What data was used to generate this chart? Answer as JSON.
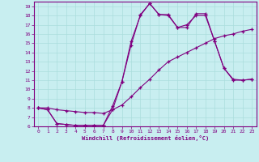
{
  "bg_color": "#c8eef0",
  "line_color": "#800080",
  "grid_color": "#aadddd",
  "xlabel": "Windchill (Refroidissement éolien,°C)",
  "xlim": [
    -0.5,
    23.5
  ],
  "ylim": [
    6,
    19.5
  ],
  "yticks": [
    6,
    7,
    8,
    9,
    10,
    11,
    12,
    13,
    14,
    15,
    16,
    17,
    18,
    19
  ],
  "xticks": [
    0,
    1,
    2,
    3,
    4,
    5,
    6,
    7,
    8,
    9,
    10,
    11,
    12,
    13,
    14,
    15,
    16,
    17,
    18,
    19,
    20,
    21,
    22,
    23
  ],
  "line1_x": [
    0,
    1,
    2,
    3,
    4,
    5,
    6,
    7,
    8,
    9,
    10,
    11,
    12,
    13,
    14,
    15,
    16,
    17,
    18,
    19,
    20,
    21,
    22,
    23
  ],
  "line1_y": [
    8.0,
    7.8,
    6.3,
    6.2,
    6.1,
    6.1,
    6.1,
    6.1,
    7.8,
    10.8,
    15.2,
    18.0,
    19.3,
    18.1,
    18.1,
    16.7,
    17.0,
    18.0,
    18.0,
    15.2,
    12.3,
    11.1,
    11.0,
    11.1
  ],
  "line2_x": [
    0,
    1,
    2,
    3,
    4,
    5,
    6,
    7,
    8,
    9,
    10,
    11,
    12,
    13,
    14,
    15,
    16,
    17,
    18,
    19,
    20,
    21,
    22,
    23
  ],
  "line2_y": [
    8.0,
    7.8,
    6.3,
    6.2,
    6.1,
    6.1,
    6.1,
    6.1,
    8.2,
    10.8,
    14.8,
    18.1,
    19.3,
    18.1,
    18.0,
    16.7,
    16.7,
    18.2,
    18.2,
    15.2,
    12.3,
    11.0,
    11.0,
    11.1
  ],
  "line3_x": [
    0,
    1,
    2,
    3,
    4,
    5,
    6,
    7,
    8,
    9,
    10,
    11,
    12,
    13,
    14,
    15,
    16,
    17,
    18,
    19,
    20,
    21,
    22,
    23
  ],
  "line3_y": [
    8.0,
    8.0,
    7.8,
    7.7,
    7.6,
    7.5,
    7.5,
    7.4,
    7.8,
    8.3,
    9.2,
    10.2,
    11.1,
    12.1,
    13.0,
    13.5,
    14.0,
    14.5,
    15.0,
    15.5,
    15.8,
    16.0,
    16.3,
    16.5
  ]
}
